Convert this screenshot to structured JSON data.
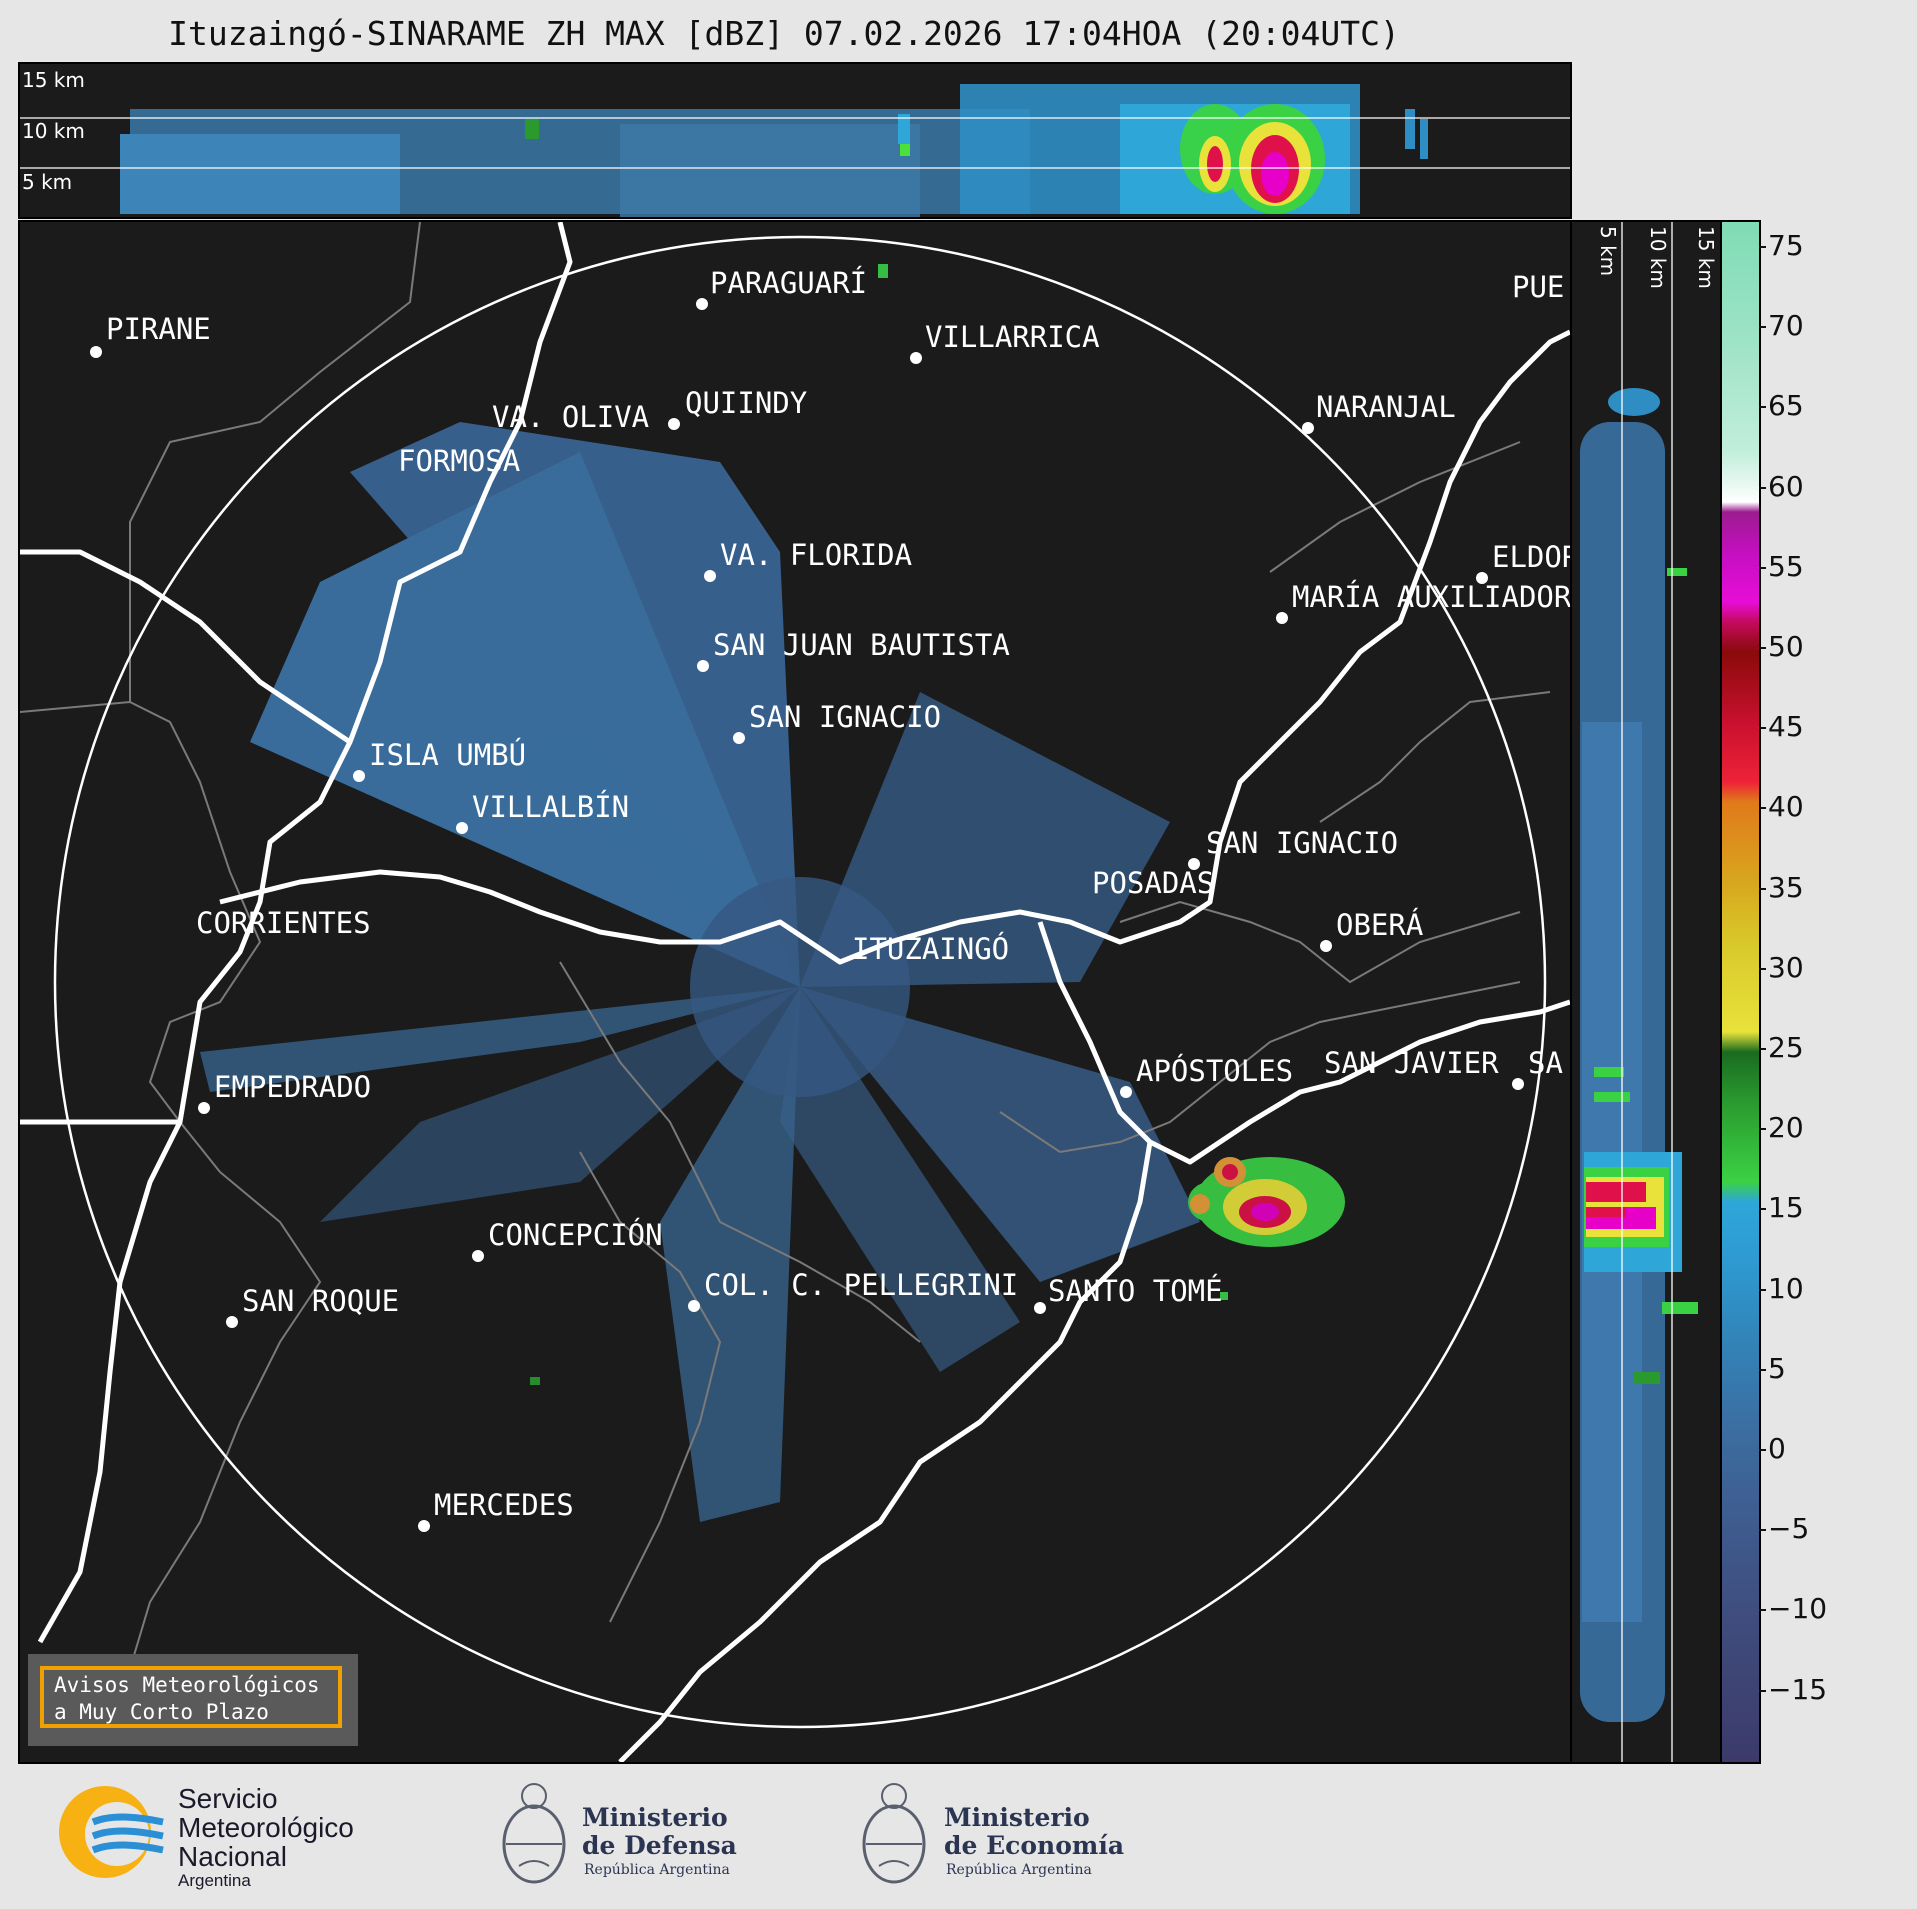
{
  "title": "Ituzaingó-SINARAME ZH MAX [dBZ] 07.02.2026 17:04HOA (20:04UTC)",
  "top_panel": {
    "height_labels": [
      "15 km",
      "10 km",
      "5 km"
    ]
  },
  "side_panel": {
    "height_labels": [
      "5 km",
      "10 km",
      "15 km"
    ]
  },
  "colorbar": {
    "ticks": [
      "75",
      "70",
      "65",
      "60",
      "55",
      "50",
      "45",
      "40",
      "35",
      "30",
      "25",
      "20",
      "15",
      "10",
      "5",
      "0",
      "−5",
      "−10",
      "−15"
    ]
  },
  "cities": [
    {
      "name": "PIRANE"
    },
    {
      "name": "PARAGUARÍ"
    },
    {
      "name": "VILLARRICA"
    },
    {
      "name": "QUIINDY"
    },
    {
      "name": "VA. OLIVA"
    },
    {
      "name": "NARANJAL"
    },
    {
      "name": "FORMOSA"
    },
    {
      "name": "VA. FLORIDA"
    },
    {
      "name": "ELDOR"
    },
    {
      "name": "MARÍA AUXILIADOR"
    },
    {
      "name": "SAN JUAN BAUTISTA"
    },
    {
      "name": "SAN IGNACIO"
    },
    {
      "name": "ISLA UMBÚ"
    },
    {
      "name": "VILLALBÍN"
    },
    {
      "name": "SAN IGNACIO"
    },
    {
      "name": "POSADAS"
    },
    {
      "name": "CORRIENTES"
    },
    {
      "name": "ITUZAINGÓ"
    },
    {
      "name": "OBERÁ"
    },
    {
      "name": "APÓSTOLES"
    },
    {
      "name": "SAN JAVIER"
    },
    {
      "name": "SA"
    },
    {
      "name": "EMPEDRADO"
    },
    {
      "name": "CONCEPCIÓN"
    },
    {
      "name": "COL. C. PELLEGRINI"
    },
    {
      "name": "SANTO TOMÉ"
    },
    {
      "name": "SAN ROQUE"
    },
    {
      "name": "MERCEDES"
    },
    {
      "name": "PUE"
    }
  ],
  "notice": {
    "line1": "Avisos Meteorológicos",
    "line2": "a Muy Corto Plazo"
  },
  "footer": {
    "smn_line1": "Servicio",
    "smn_line2": "Meteorológico",
    "smn_line3": "Nacional",
    "smn_country": "Argentina",
    "defensa_line1": "Ministerio",
    "defensa_line2": "de Defensa",
    "defensa_country": "República Argentina",
    "economia_line1": "Ministerio",
    "economia_line2": "de Economía",
    "economia_country": "República Argentina"
  }
}
